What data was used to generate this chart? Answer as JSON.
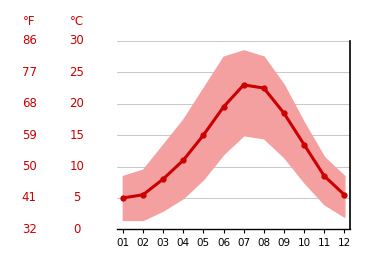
{
  "months": [
    1,
    2,
    3,
    4,
    5,
    6,
    7,
    8,
    9,
    10,
    11,
    12
  ],
  "month_labels": [
    "01",
    "02",
    "03",
    "04",
    "05",
    "06",
    "07",
    "08",
    "09",
    "10",
    "11",
    "12"
  ],
  "mean_temp": [
    5.0,
    5.5,
    8.0,
    11.0,
    15.0,
    19.5,
    23.0,
    22.5,
    18.5,
    13.5,
    8.5,
    5.5
  ],
  "temp_max": [
    8.5,
    9.5,
    13.5,
    17.5,
    22.5,
    27.5,
    28.5,
    27.5,
    23.0,
    17.0,
    11.5,
    8.5
  ],
  "temp_min": [
    1.5,
    1.5,
    3.0,
    5.0,
    8.0,
    12.0,
    15.0,
    14.5,
    11.5,
    7.5,
    4.0,
    2.0
  ],
  "ylim": [
    0,
    30
  ],
  "yticks_c": [
    0,
    5,
    10,
    15,
    20,
    25,
    30
  ],
  "yticks_f": [
    32,
    41,
    50,
    59,
    68,
    77,
    86
  ],
  "mean_color": "#cc0000",
  "band_color": "#f4a0a0",
  "background_color": "#ffffff",
  "grid_color": "#c8c8c8",
  "label_color": "#cc0000",
  "spine_color": "#000000",
  "marker": "o",
  "marker_size": 3.5,
  "linewidth": 2.2,
  "label_fontsize": 8.5,
  "tick_fontsize": 7.5
}
